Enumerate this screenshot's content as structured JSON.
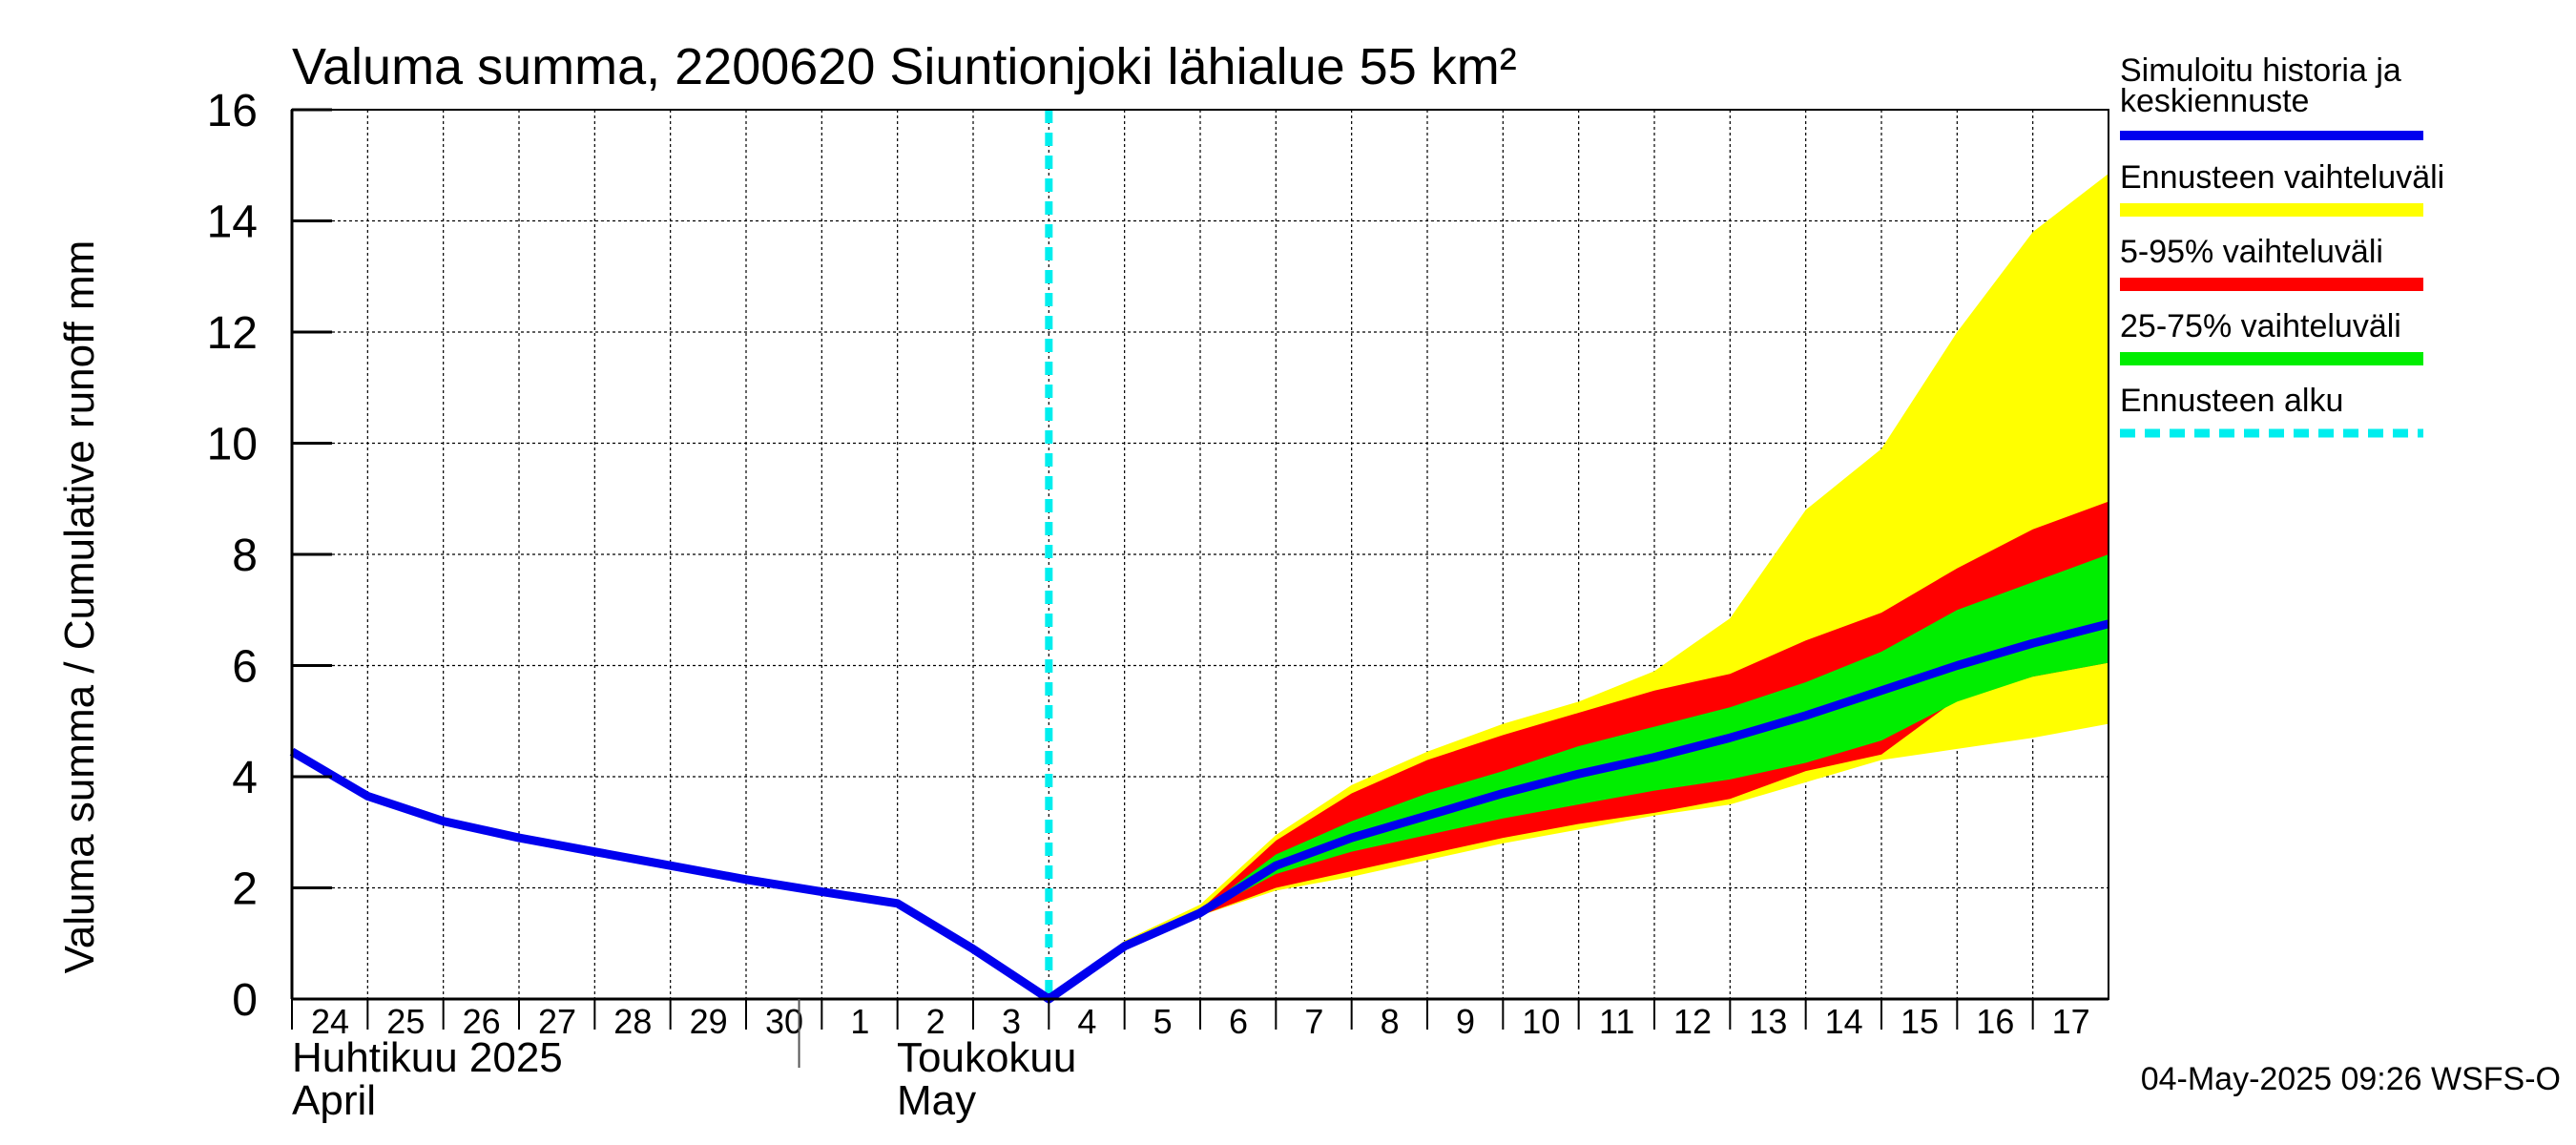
{
  "chart_data": {
    "type": "area",
    "title": "Valuma summa, 2200620 Siuntionjoki lähialue 55 km²",
    "ylabel": "Valuma summa / Cumulative runoff    mm",
    "ylim": [
      0,
      16
    ],
    "yticks": [
      "0",
      "2",
      "4",
      "6",
      "8",
      "10",
      "12",
      "14",
      "16"
    ],
    "x_domain": [
      0,
      24
    ],
    "x_labels": [
      {
        "x": 0,
        "label": "24"
      },
      {
        "x": 1,
        "label": "25"
      },
      {
        "x": 2,
        "label": "26"
      },
      {
        "x": 3,
        "label": "27"
      },
      {
        "x": 4,
        "label": "28"
      },
      {
        "x": 5,
        "label": "29"
      },
      {
        "x": 6,
        "label": "30"
      },
      {
        "x": 7,
        "label": "1"
      },
      {
        "x": 8,
        "label": "2"
      },
      {
        "x": 9,
        "label": "3"
      },
      {
        "x": 10,
        "label": "4"
      },
      {
        "x": 11,
        "label": "5"
      },
      {
        "x": 12,
        "label": "6"
      },
      {
        "x": 13,
        "label": "7"
      },
      {
        "x": 14,
        "label": "8"
      },
      {
        "x": 15,
        "label": "9"
      },
      {
        "x": 16,
        "label": "10"
      },
      {
        "x": 17,
        "label": "11"
      },
      {
        "x": 18,
        "label": "12"
      },
      {
        "x": 19,
        "label": "13"
      },
      {
        "x": 20,
        "label": "14"
      },
      {
        "x": 21,
        "label": "15"
      },
      {
        "x": 22,
        "label": "16"
      },
      {
        "x": 23,
        "label": "17"
      }
    ],
    "month_labels": {
      "april_fi": "Huhtikuu  2025",
      "april_en": "April",
      "may_fi": "Toukokuu",
      "may_en": "May"
    },
    "forecast_start_x": 10,
    "series": [
      {
        "name": "Simuloitu historia ja keskiennuste",
        "color": "#0000ee",
        "points": [
          [
            0,
            4.45
          ],
          [
            1,
            3.65
          ],
          [
            2,
            3.2
          ],
          [
            3,
            2.9
          ],
          [
            4,
            2.65
          ],
          [
            5,
            2.4
          ],
          [
            6,
            2.15
          ],
          [
            7,
            1.93
          ],
          [
            8,
            1.72
          ],
          [
            9,
            0.9
          ],
          [
            10,
            0.0
          ],
          [
            11,
            0.95
          ],
          [
            12,
            1.55
          ],
          [
            13,
            2.4
          ],
          [
            14,
            2.9
          ],
          [
            15,
            3.3
          ],
          [
            16,
            3.7
          ],
          [
            17,
            4.05
          ],
          [
            18,
            4.35
          ],
          [
            19,
            4.7
          ],
          [
            20,
            5.1
          ],
          [
            21,
            5.55
          ],
          [
            22,
            6.0
          ],
          [
            23,
            6.4
          ],
          [
            24,
            6.75
          ]
        ]
      }
    ],
    "bands": [
      {
        "name": "Ennusteen vaihteluväli",
        "color": "#ffff00",
        "x": [
          10,
          11,
          12,
          13,
          14,
          15,
          16,
          17,
          18,
          19,
          20,
          21,
          22,
          23,
          24
        ],
        "low": [
          0,
          0.9,
          1.5,
          1.95,
          2.2,
          2.5,
          2.8,
          3.05,
          3.3,
          3.5,
          3.9,
          4.3,
          4.5,
          4.7,
          4.95
        ],
        "high": [
          0,
          1.05,
          1.7,
          2.95,
          3.85,
          4.45,
          4.95,
          5.35,
          5.9,
          6.85,
          8.8,
          9.9,
          12.0,
          13.8,
          14.85
        ]
      },
      {
        "name": "5-95% vaihteluväli",
        "color": "#ff0000",
        "x": [
          10,
          11,
          12,
          13,
          14,
          15,
          16,
          17,
          18,
          19,
          20,
          21,
          22,
          23,
          24
        ],
        "low": [
          0,
          0.9,
          1.5,
          2.0,
          2.3,
          2.6,
          2.9,
          3.15,
          3.35,
          3.6,
          4.1,
          4.4,
          5.4,
          5.8,
          6.05
        ],
        "high": [
          0,
          0.95,
          1.6,
          2.85,
          3.7,
          4.3,
          4.75,
          5.15,
          5.55,
          5.85,
          6.45,
          6.95,
          7.75,
          8.45,
          8.95
        ]
      },
      {
        "name": "25-75% vaihteluväli",
        "color": "#00ee00",
        "x": [
          10,
          11,
          12,
          13,
          14,
          15,
          16,
          17,
          18,
          19,
          20,
          21,
          22,
          23,
          24
        ],
        "low": [
          0,
          0.92,
          1.52,
          2.25,
          2.65,
          2.95,
          3.25,
          3.5,
          3.75,
          3.95,
          4.25,
          4.65,
          5.35,
          5.8,
          6.05
        ],
        "high": [
          0,
          0.98,
          1.58,
          2.6,
          3.2,
          3.7,
          4.1,
          4.55,
          4.9,
          5.25,
          5.7,
          6.25,
          7.0,
          7.5,
          8.0
        ]
      }
    ],
    "legend": [
      {
        "label": "Simuloitu historia ja keskiennuste",
        "color": "#0000ee",
        "style": "solid"
      },
      {
        "label": "Ennusteen vaihteluväli",
        "color": "#ffff00",
        "style": "solid"
      },
      {
        "label": "5-95% vaihteluväli",
        "color": "#ff0000",
        "style": "solid"
      },
      {
        "label": "25-75% vaihteluväli",
        "color": "#00ee00",
        "style": "solid"
      },
      {
        "label": "Ennusteen alku",
        "color": "#00eeee",
        "style": "dashed"
      }
    ],
    "legend_lines": {
      "item0_line1": "Simuloitu historia ja",
      "item0_line2": "keskiennuste"
    },
    "footer": "04-May-2025 09:26 WSFS-O"
  }
}
